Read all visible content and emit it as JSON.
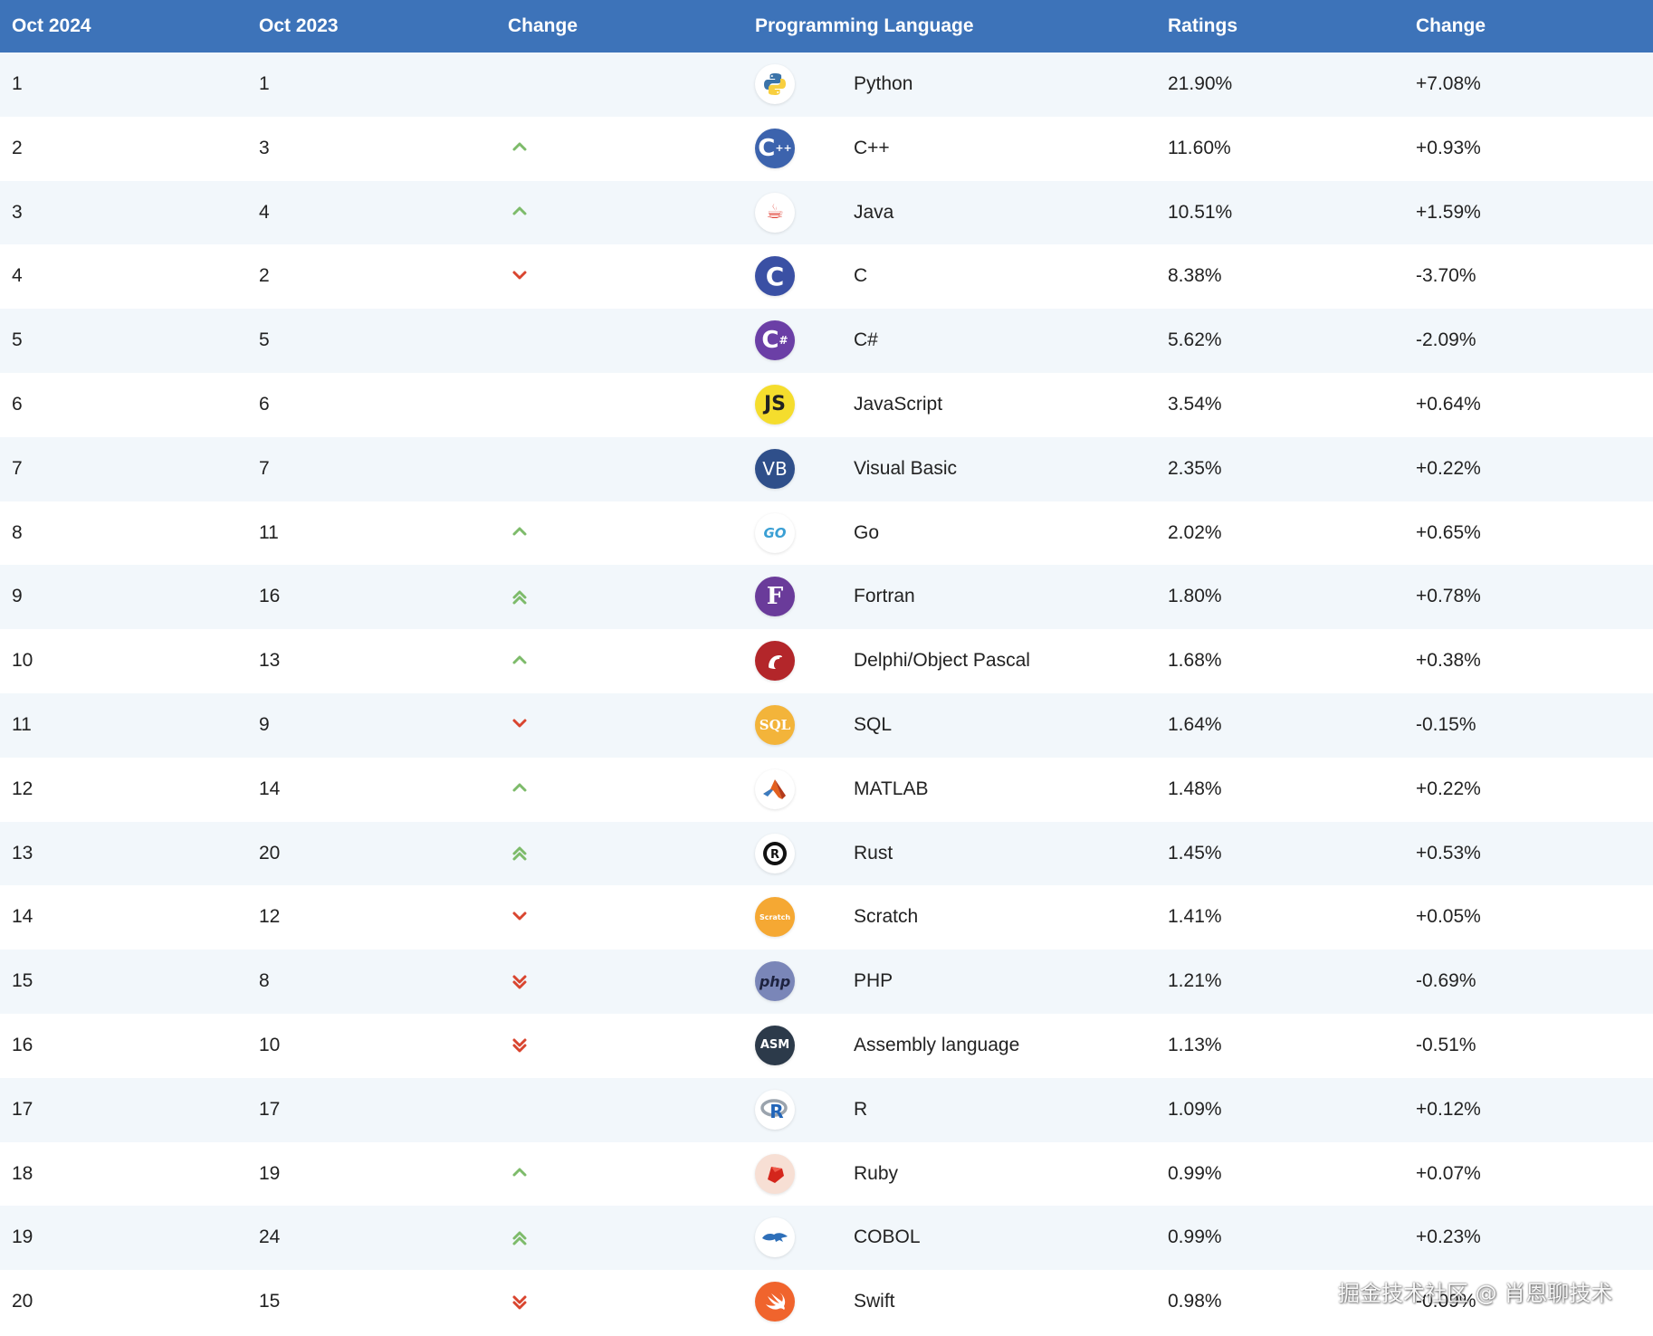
{
  "header": {
    "col1": "Oct 2024",
    "col2": "Oct 2023",
    "col3": "Change",
    "col4": "Programming Language",
    "col5": "Ratings",
    "col6": "Change"
  },
  "colors": {
    "header_bg": "#3d73b9",
    "row_odd_bg": "#f2f7fb",
    "row_even_bg": "#ffffff",
    "arrow_up": "#7dbb6a",
    "arrow_down": "#d9452f"
  },
  "rows": [
    {
      "rank": "1",
      "prev": "1",
      "trend": "none",
      "icon": "python-icon",
      "language": "Python",
      "rating": "21.90%",
      "change": "+7.08%"
    },
    {
      "rank": "2",
      "prev": "3",
      "trend": "up",
      "icon": "cpp-icon",
      "language": "C++",
      "rating": "11.60%",
      "change": "+0.93%"
    },
    {
      "rank": "3",
      "prev": "4",
      "trend": "up",
      "icon": "java-icon",
      "language": "Java",
      "rating": "10.51%",
      "change": "+1.59%"
    },
    {
      "rank": "4",
      "prev": "2",
      "trend": "down",
      "icon": "c-icon",
      "language": "C",
      "rating": "8.38%",
      "change": "-3.70%"
    },
    {
      "rank": "5",
      "prev": "5",
      "trend": "none",
      "icon": "csharp-icon",
      "language": "C#",
      "rating": "5.62%",
      "change": "-2.09%"
    },
    {
      "rank": "6",
      "prev": "6",
      "trend": "none",
      "icon": "javascript-icon",
      "language": "JavaScript",
      "rating": "3.54%",
      "change": "+0.64%"
    },
    {
      "rank": "7",
      "prev": "7",
      "trend": "none",
      "icon": "visual-basic-icon",
      "language": "Visual Basic",
      "rating": "2.35%",
      "change": "+0.22%"
    },
    {
      "rank": "8",
      "prev": "11",
      "trend": "up",
      "icon": "go-icon",
      "language": "Go",
      "rating": "2.02%",
      "change": "+0.65%"
    },
    {
      "rank": "9",
      "prev": "16",
      "trend": "up2",
      "icon": "fortran-icon",
      "language": "Fortran",
      "rating": "1.80%",
      "change": "+0.78%"
    },
    {
      "rank": "10",
      "prev": "13",
      "trend": "up",
      "icon": "delphi-icon",
      "language": "Delphi/Object Pascal",
      "rating": "1.68%",
      "change": "+0.38%"
    },
    {
      "rank": "11",
      "prev": "9",
      "trend": "down",
      "icon": "sql-icon",
      "language": "SQL",
      "rating": "1.64%",
      "change": "-0.15%"
    },
    {
      "rank": "12",
      "prev": "14",
      "trend": "up",
      "icon": "matlab-icon",
      "language": "MATLAB",
      "rating": "1.48%",
      "change": "+0.22%"
    },
    {
      "rank": "13",
      "prev": "20",
      "trend": "up2",
      "icon": "rust-icon",
      "language": "Rust",
      "rating": "1.45%",
      "change": "+0.53%"
    },
    {
      "rank": "14",
      "prev": "12",
      "trend": "down",
      "icon": "scratch-icon",
      "language": "Scratch",
      "rating": "1.41%",
      "change": "+0.05%"
    },
    {
      "rank": "15",
      "prev": "8",
      "trend": "down2",
      "icon": "php-icon",
      "language": "PHP",
      "rating": "1.21%",
      "change": "-0.69%"
    },
    {
      "rank": "16",
      "prev": "10",
      "trend": "down2",
      "icon": "assembly-icon",
      "language": "Assembly language",
      "rating": "1.13%",
      "change": "-0.51%"
    },
    {
      "rank": "17",
      "prev": "17",
      "trend": "none",
      "icon": "r-icon",
      "language": "R",
      "rating": "1.09%",
      "change": "+0.12%"
    },
    {
      "rank": "18",
      "prev": "19",
      "trend": "up",
      "icon": "ruby-icon",
      "language": "Ruby",
      "rating": "0.99%",
      "change": "+0.07%"
    },
    {
      "rank": "19",
      "prev": "24",
      "trend": "up2",
      "icon": "cobol-icon",
      "language": "COBOL",
      "rating": "0.99%",
      "change": "+0.23%"
    },
    {
      "rank": "20",
      "prev": "15",
      "trend": "down2",
      "icon": "swift-icon",
      "language": "Swift",
      "rating": "0.98%",
      "change": "-0.09%"
    }
  ],
  "icon_labels": {
    "cpp": "C",
    "cpp_sup": "++",
    "java": "☕",
    "c": "C",
    "csharp": "C",
    "csharp_sup": "#",
    "javascript": "JS",
    "visual_basic": "VB",
    "go": "GO",
    "fortran": "F",
    "sql": "SQL",
    "rust": "R",
    "scratch": "Scratch",
    "php": "php",
    "assembly": "ASM",
    "r": "R"
  },
  "watermark": "掘金技术社区 @ 肖恩聊技术"
}
